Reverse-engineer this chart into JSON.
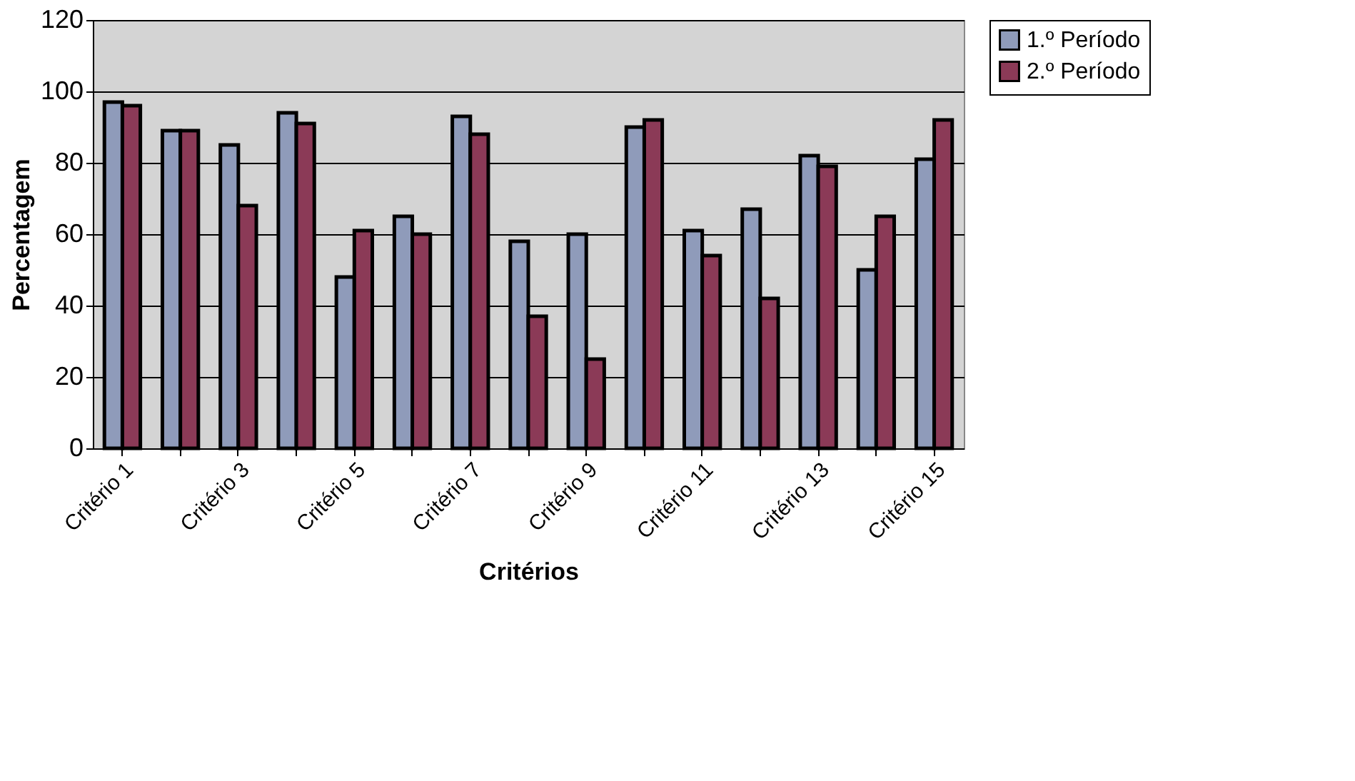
{
  "chart_data": {
    "type": "bar",
    "xlabel": "Critérios",
    "ylabel": "Percentagem",
    "categories": [
      "Critério 1",
      null,
      "Critério 3",
      null,
      "Critério 5",
      null,
      "Critério 7",
      null,
      "Critério 9",
      null,
      "Critério 11",
      null,
      "Critério 13",
      null,
      "Critério 15"
    ],
    "series": [
      {
        "name": "1.º Período",
        "color": "#8f9bba",
        "values": [
          97,
          89,
          85,
          94,
          48,
          65,
          93,
          58,
          60,
          90,
          61,
          67,
          82,
          50,
          81
        ]
      },
      {
        "name": "2.º Período",
        "color": "#8b3a57",
        "values": [
          96,
          89,
          68,
          91,
          61,
          60,
          88,
          37,
          25,
          92,
          54,
          42,
          79,
          65,
          92
        ]
      }
    ],
    "ylim": [
      0,
      120
    ],
    "yticks": [
      0,
      20,
      40,
      60,
      80,
      100,
      120
    ],
    "grid": "y",
    "legend": "right"
  }
}
